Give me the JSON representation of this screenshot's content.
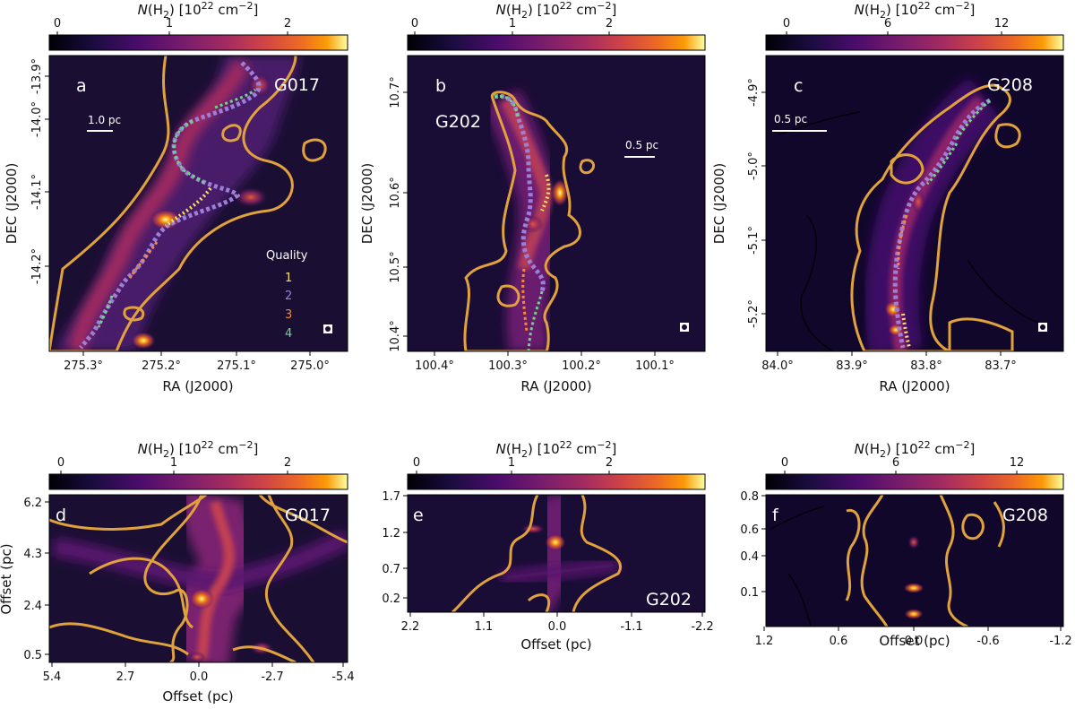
{
  "chart_data": [
    {
      "panel": "a",
      "name": "G017",
      "type": "heatmap",
      "colorbar": {
        "label": "N(H2) [10^22 cm^-2]",
        "ticks": [
          "0",
          "1",
          "2"
        ],
        "range": [
          0,
          2.4
        ]
      },
      "xlabel": "RA (J2000)",
      "ylabel": "DEC (J2000)",
      "xticks": [
        "275.3°",
        "275.2°",
        "275.1°",
        "275.0°"
      ],
      "yticks": [
        "-13.9°",
        "-14.0°",
        "-14.1°",
        "-14.2°"
      ],
      "scalebar": "1.0 pc",
      "legend": {
        "title": "Quality",
        "entries": [
          "1",
          "2",
          "3",
          "4"
        ]
      }
    },
    {
      "panel": "b",
      "name": "G202",
      "type": "heatmap",
      "colorbar": {
        "label": "N(H2) [10^22 cm^-2]",
        "ticks": [
          "0",
          "1",
          "2"
        ],
        "range": [
          0,
          2.7
        ]
      },
      "xlabel": "RA (J2000)",
      "ylabel": "DEC (J2000)",
      "xticks": [
        "100.4°",
        "100.3°",
        "100.2°",
        "100.1°"
      ],
      "yticks": [
        "10.7°",
        "10.6°",
        "10.5°",
        "10.4°"
      ],
      "scalebar": "0.5 pc"
    },
    {
      "panel": "c",
      "name": "G208",
      "type": "heatmap",
      "colorbar": {
        "label": "N(H2) [10^22 cm^-2]",
        "ticks": [
          "0",
          "6",
          "12"
        ],
        "range": [
          0,
          15
        ]
      },
      "xlabel": "RA (J2000)",
      "ylabel": "DEC (J2000)",
      "xticks": [
        "84.0°",
        "83.9°",
        "83.8°",
        "83.7°"
      ],
      "yticks": [
        "-4.9°",
        "-5.0°",
        "-5.1°",
        "-5.2°"
      ],
      "scalebar": "0.5 pc"
    },
    {
      "panel": "d",
      "name": "G017",
      "type": "heatmap",
      "colorbar": {
        "label": "N(H2) [10^22 cm^-2]",
        "ticks": [
          "0",
          "1",
          "2"
        ],
        "range": [
          0,
          2.4
        ]
      },
      "xlabel": "Offset (pc)",
      "ylabel": "Offset (pc)",
      "xticks": [
        "5.4",
        "2.7",
        "0.0",
        "-2.7",
        "-5.4"
      ],
      "yticks": [
        "6.2",
        "4.3",
        "2.4",
        "0.5"
      ]
    },
    {
      "panel": "e",
      "name": "G202",
      "type": "heatmap",
      "colorbar": {
        "label": "N(H2) [10^22 cm^-2]",
        "ticks": [
          "0",
          "1",
          "2"
        ],
        "range": [
          0,
          2.7
        ]
      },
      "xlabel": "Offset (pc)",
      "xticks": [
        "2.2",
        "1.1",
        "0.0",
        "-1.1",
        "-2.2"
      ],
      "yticks": [
        "1.7",
        "1.2",
        "0.7",
        "0.2"
      ]
    },
    {
      "panel": "f",
      "name": "G208",
      "type": "heatmap",
      "colorbar": {
        "label": "N(H2) [10^22 cm^-2]",
        "ticks": [
          "0",
          "6",
          "12"
        ],
        "range": [
          0,
          15
        ]
      },
      "xlabel": "Offset (pc)",
      "xticks": [
        "1.2",
        "0.6",
        "0.0",
        "-0.6",
        "-1.2"
      ],
      "yticks": [
        "0.8",
        "0.6",
        "0.4",
        "0.1"
      ]
    }
  ],
  "colors": {
    "contour": "#e0a23c",
    "quality_1": "#f7e060",
    "quality_2": "#9b7fd9",
    "quality_3": "#f08a3c",
    "quality_4": "#6fd48a",
    "colormap": "inferno"
  }
}
